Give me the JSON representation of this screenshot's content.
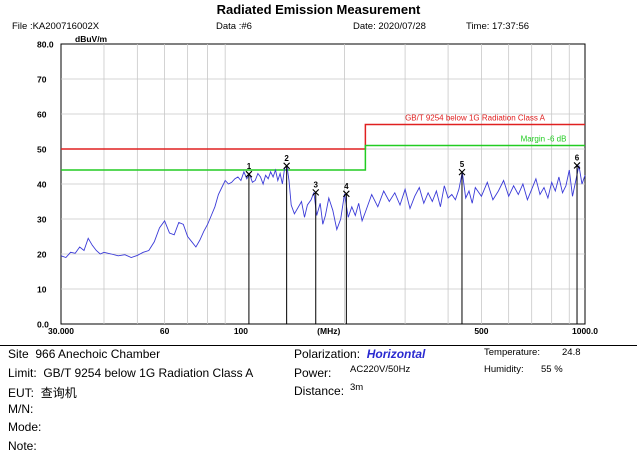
{
  "title": "Radiated Emission Measurement",
  "header": {
    "file": "File :KA200716002X",
    "data": "Data :#6",
    "date": "Date: 2020/07/28",
    "time": "Time: 17:37:56"
  },
  "colors": {
    "trace": "#3b3bd8",
    "limit": "#e02020",
    "margin": "#22cc22",
    "polarization": "#2a2ad0"
  },
  "chart_data": {
    "type": "line",
    "xscale": "log",
    "xlim": [
      30,
      1000
    ],
    "ylim": [
      0,
      80
    ],
    "yunit": "dBuV/m",
    "xunit": "(MHz)",
    "yticks": [
      "0.0",
      "10",
      "20",
      "30",
      "40",
      "50",
      "60",
      "70",
      "80.0"
    ],
    "xtick_labels": [
      {
        "x": 30,
        "label": "30.000"
      },
      {
        "x": 60,
        "label": "60"
      },
      {
        "x": 100,
        "label": "100"
      },
      {
        "x": 500,
        "label": "500"
      },
      {
        "x": 1000,
        "label": "1000.0"
      }
    ],
    "limit_line": {
      "label": "GB/T 9254 below 1G Radiation Class A",
      "segments": [
        [
          30,
          230,
          50
        ],
        [
          230,
          1000,
          57
        ]
      ]
    },
    "margin_line": {
      "label": "Margin -6 dB",
      "segments": [
        [
          30,
          230,
          44
        ],
        [
          230,
          1000,
          51
        ]
      ]
    },
    "markers": [
      {
        "id": "1",
        "x": 105.5,
        "y": 42.8
      },
      {
        "id": "2",
        "x": 135.8,
        "y": 45.2
      },
      {
        "id": "3",
        "x": 165.0,
        "y": 37.6
      },
      {
        "id": "4",
        "x": 202.5,
        "y": 37.2
      },
      {
        "id": "5",
        "x": 439.0,
        "y": 43.4
      },
      {
        "id": "6",
        "x": 948.0,
        "y": 45.3
      }
    ],
    "series": [
      {
        "x": [
          30,
          31,
          32,
          33,
          34,
          35,
          36,
          37,
          38,
          39,
          40,
          42,
          44,
          46,
          48,
          50,
          52,
          54,
          56,
          58,
          60,
          62,
          64,
          66,
          68,
          70,
          72,
          74,
          76,
          78,
          80,
          82,
          84,
          86,
          88,
          90,
          92,
          94,
          96,
          98,
          100,
          102,
          104,
          106,
          108,
          110,
          112,
          114,
          116,
          118,
          120,
          122,
          124,
          126,
          128,
          130,
          132,
          134,
          136,
          138,
          140,
          143,
          146,
          150,
          153,
          156,
          160,
          163,
          166,
          170,
          173,
          176,
          180,
          185,
          190,
          195,
          200,
          205,
          210,
          215,
          220,
          225,
          230,
          240,
          250,
          260,
          270,
          280,
          290,
          300,
          310,
          320,
          330,
          340,
          350,
          360,
          370,
          380,
          390,
          400,
          410,
          420,
          430,
          440,
          450,
          460,
          470,
          480,
          500,
          520,
          540,
          560,
          580,
          600,
          620,
          640,
          660,
          680,
          700,
          720,
          740,
          760,
          780,
          800,
          820,
          840,
          860,
          880,
          900,
          920,
          940,
          960,
          980,
          1000
        ],
        "y": [
          19.5,
          19.0,
          20.5,
          20.2,
          22.0,
          21.0,
          24.5,
          22.5,
          21.0,
          20.0,
          20.5,
          20.0,
          19.5,
          19.8,
          19.0,
          19.6,
          20.5,
          21.0,
          23.5,
          27.5,
          29.5,
          26.0,
          25.5,
          29.0,
          28.5,
          25.0,
          23.5,
          22.0,
          24.0,
          26.5,
          28.5,
          31.0,
          33.5,
          37.0,
          39.0,
          41.0,
          40.0,
          40.5,
          41.5,
          42.0,
          41.0,
          43.5,
          41.5,
          42.8,
          40.5,
          41.0,
          43.0,
          42.0,
          40.0,
          42.5,
          41.5,
          43.5,
          42.0,
          44.0,
          41.0,
          43.0,
          40.0,
          44.5,
          45.2,
          41.0,
          34.0,
          31.5,
          33.0,
          35.0,
          30.5,
          34.0,
          35.5,
          37.6,
          31.0,
          34.5,
          28.5,
          31.0,
          36.0,
          32.5,
          27.0,
          30.0,
          37.2,
          30.5,
          33.5,
          31.0,
          34.5,
          29.5,
          32.0,
          37.0,
          33.5,
          38.0,
          35.0,
          37.5,
          34.0,
          38.5,
          33.0,
          36.5,
          39.0,
          34.5,
          37.5,
          35.0,
          38.0,
          33.5,
          39.5,
          36.0,
          37.0,
          35.5,
          38.5,
          43.4,
          36.0,
          38.0,
          34.5,
          39.0,
          36.5,
          40.5,
          35.5,
          38.0,
          41.0,
          36.5,
          39.5,
          37.0,
          40.0,
          35.5,
          38.5,
          41.5,
          37.0,
          39.0,
          36.0,
          40.5,
          38.0,
          42.0,
          37.5,
          39.5,
          44.0,
          36.5,
          41.0,
          45.3,
          40.0,
          42.5
        ]
      }
    ]
  },
  "info": {
    "site_label": "Site",
    "site": "966 Anechoic Chamber",
    "limit_label": "Limit:",
    "limit": "GB/T 9254 below 1G Radiation Class A",
    "eut_label": "EUT:",
    "eut": "查询机",
    "mn_label": "M/N:",
    "mode_label": "Mode:",
    "note_label": "Note:",
    "polarization_label": "Polarization:",
    "polarization": "Horizontal",
    "power_label": "Power:",
    "power": "AC220V/50Hz",
    "distance_label": "Distance:",
    "distance": "3m",
    "temperature_label": "Temperature:",
    "temperature": "24.8",
    "humidity_label": "Humidity:",
    "humidity": "55 %"
  }
}
